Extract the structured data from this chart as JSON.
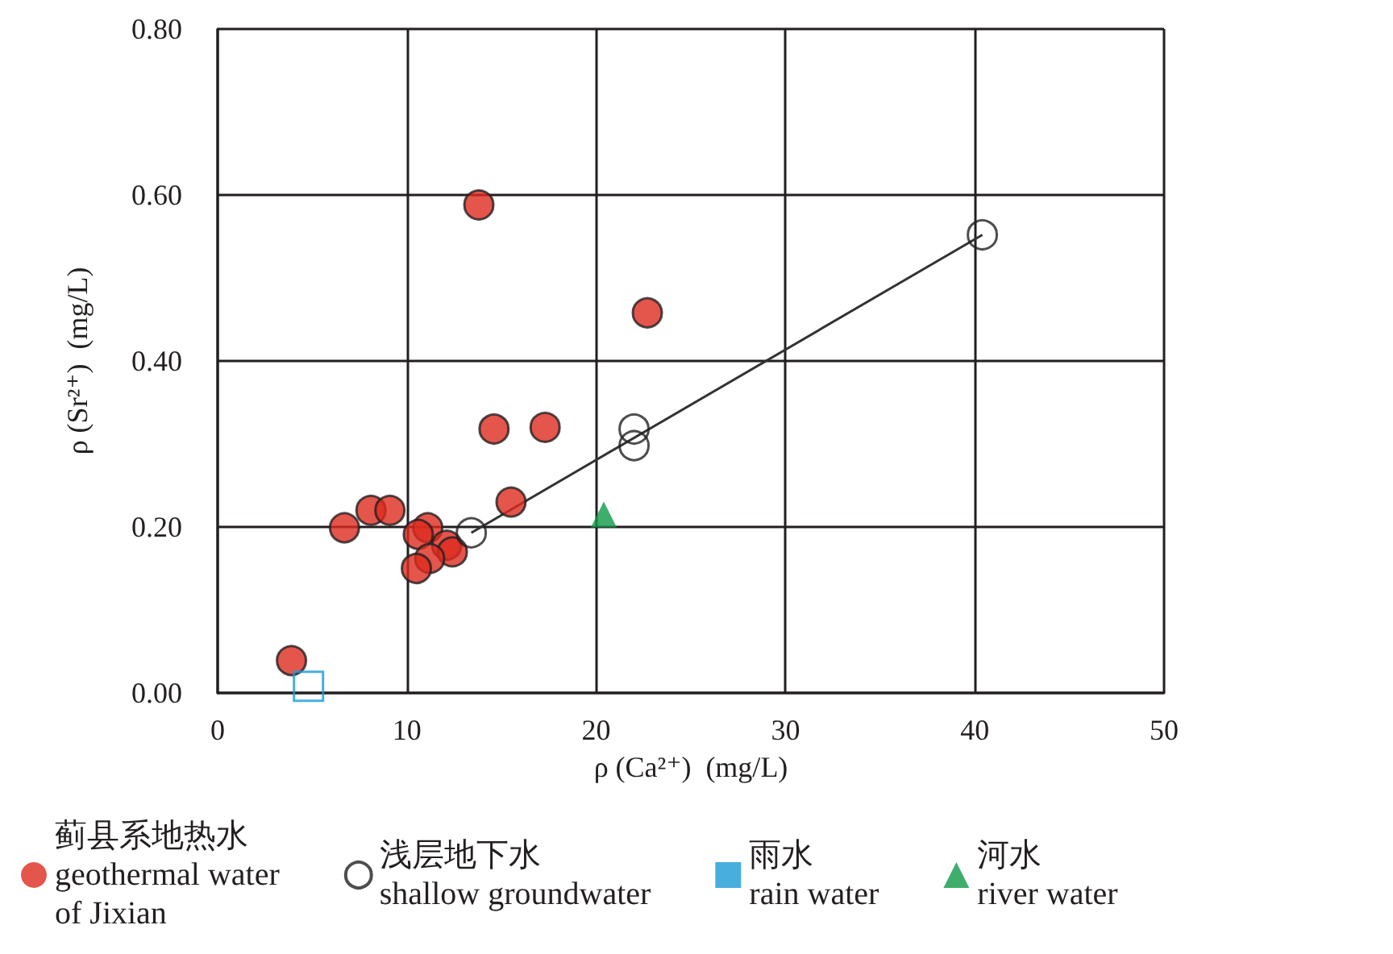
{
  "chart_data": {
    "type": "scatter",
    "xlabel": "ρ (Ca²⁺)  (mg/L)",
    "ylabel": "ρ (Sr²⁺)  (mg/L)",
    "xlim": [
      0,
      50
    ],
    "xticks": [
      0,
      10,
      20,
      30,
      40,
      50
    ],
    "ylim": [
      0,
      0.8
    ],
    "yticks": [
      {
        "value": 0,
        "label": "0.00"
      },
      {
        "value": 0.2,
        "label": "0.20"
      },
      {
        "value": 0.4,
        "label": "0.40"
      },
      {
        "value": 0.6,
        "label": "0.60"
      },
      {
        "value": 0.8,
        "label": "0.80"
      }
    ],
    "grid": true,
    "legend": "bottom",
    "series": [
      {
        "name": "蓟县系地热水\ngeothermal water\nof Jixian",
        "color": "#dd2a1e",
        "marker": "circle",
        "x": [
          13.8,
          22.7,
          14.6,
          17.3,
          15.5,
          8.1,
          9.1,
          6.7,
          11.1,
          10.6,
          12.1,
          12.4,
          11.2,
          10.5,
          3.9
        ],
        "values": [
          0.588,
          0.458,
          0.318,
          0.32,
          0.23,
          0.22,
          0.22,
          0.199,
          0.199,
          0.191,
          0.178,
          0.17,
          0.162,
          0.15,
          0.039
        ]
      },
      {
        "name": "浅层地下水\nshallow groundwater",
        "color": "#231f20",
        "marker": "circle",
        "x": [
          13.4,
          22.0,
          22.0,
          40.4
        ],
        "values": [
          0.193,
          0.318,
          0.298,
          0.552
        ]
      },
      {
        "name": "雨水\nrain water",
        "color": "#1a9ad6",
        "marker": "square",
        "x": [
          4.8
        ],
        "values": [
          0.008
        ]
      },
      {
        "name": "河水\nriver water",
        "color": "#0f9a48",
        "marker": "triangle",
        "x": [
          20.4
        ],
        "values": [
          0.215
        ]
      },
      {
        "type": "line",
        "color": "#333333",
        "marker": "none",
        "x": [
          13.4,
          40.4
        ],
        "values": [
          0.193,
          0.552
        ]
      }
    ]
  }
}
